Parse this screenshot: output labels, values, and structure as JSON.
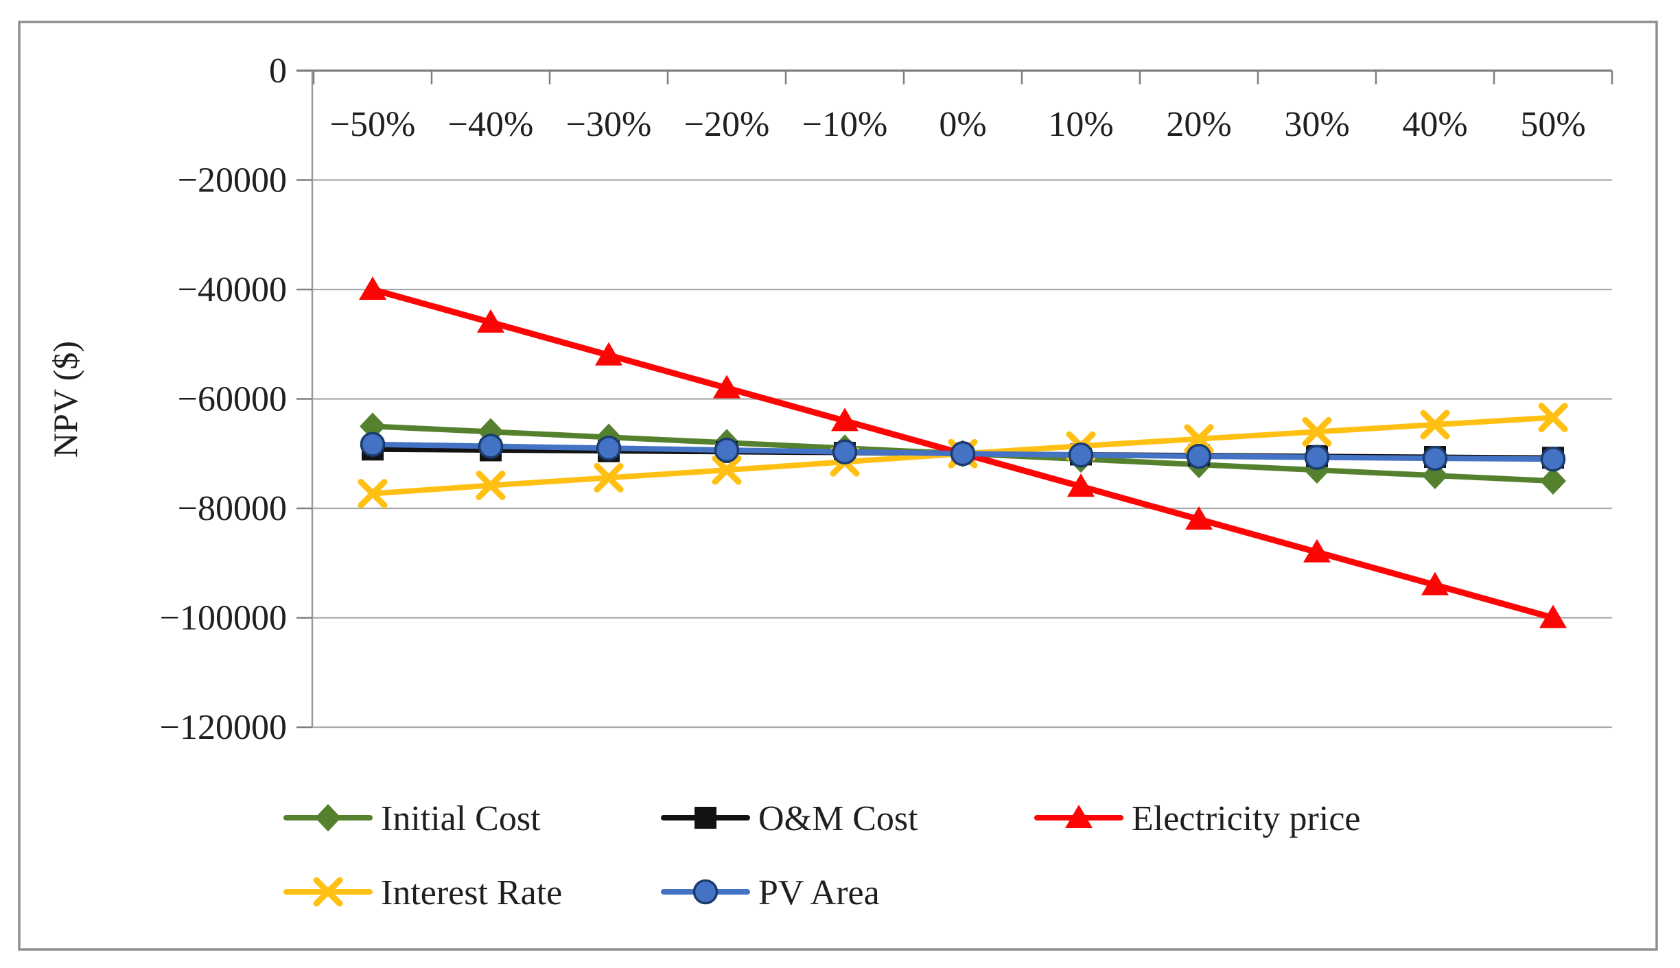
{
  "chart_data": {
    "type": "line",
    "title": "",
    "xlabel": "",
    "ylabel": "NPV ($)",
    "categories": [
      "−50%",
      "−40%",
      "−30%",
      "−20%",
      "−10%",
      "0%",
      "10%",
      "20%",
      "30%",
      "40%",
      "50%"
    ],
    "y_axis": {
      "min": -120000,
      "max": 0,
      "tick_step": 20000,
      "tick_values": [
        0,
        -20000,
        -40000,
        -60000,
        -80000,
        -100000,
        -120000
      ],
      "tick_labels": [
        "0",
        "−20000",
        "−40000",
        "−60000",
        "−80000",
        "−100000",
        "−120000"
      ]
    },
    "grid": "horizontal",
    "legend_position": "bottom",
    "series": [
      {
        "name": "Initial Cost",
        "color": "#55812F",
        "marker": "diamond",
        "values": [
          -65000,
          -66000,
          -67000,
          -68000,
          -69000,
          -70000,
          -71000,
          -72000,
          -73000,
          -74000,
          -75000
        ]
      },
      {
        "name": "O&M Cost",
        "color": "#121212",
        "marker": "square",
        "values": [
          -69250,
          -69400,
          -69550,
          -69700,
          -69850,
          -70000,
          -70150,
          -70300,
          -70450,
          -70600,
          -70750
        ]
      },
      {
        "name": "Electricity price",
        "color": "#FB0505",
        "marker": "triangle",
        "values": [
          -40000,
          -46000,
          -52000,
          -58000,
          -64000,
          -70000,
          -76000,
          -82000,
          -88000,
          -94000,
          -100000
        ]
      },
      {
        "name": "Interest Rate",
        "color": "#FFC013",
        "marker": "x",
        "values": [
          -77300,
          -75800,
          -74400,
          -73000,
          -71500,
          -70000,
          -68600,
          -67300,
          -66000,
          -64700,
          -63400
        ]
      },
      {
        "name": "PV Area",
        "color": "#4472C4",
        "marker": "circle",
        "marker_outline": "#1A3C6E",
        "values": [
          -68300,
          -68650,
          -69000,
          -69350,
          -69680,
          -70000,
          -70250,
          -70480,
          -70680,
          -70860,
          -71000
        ]
      }
    ],
    "legend_rows": [
      [
        "Initial Cost",
        "O&M Cost",
        "Electricity price"
      ],
      [
        "Interest Rate",
        "PV Area"
      ]
    ],
    "colors": {
      "grid": "#A9A9A9",
      "axis": "#7F7F7F",
      "frame": "#8F8F8F",
      "text": "#1F1F1F"
    }
  }
}
